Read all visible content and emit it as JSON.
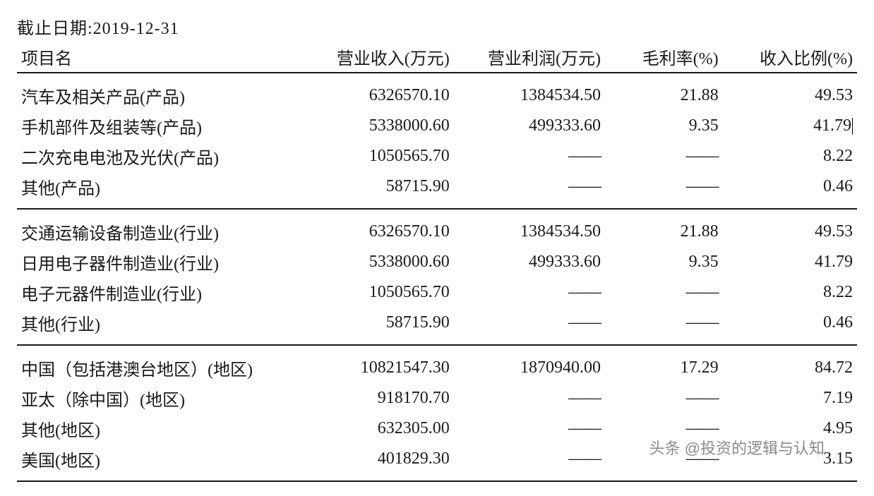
{
  "meta": {
    "cutoff_label": "截止日期",
    "cutoff_date": "2019-12-31"
  },
  "table": {
    "type": "table",
    "font_family": "SimSun",
    "font_size_pt": 18,
    "border_color": "#1a1a1a",
    "background_color": "#ffffff",
    "text_color": "#1a1a1a",
    "dash_placeholder": "——",
    "columns": [
      {
        "key": "name",
        "label": "项目名",
        "align": "left"
      },
      {
        "key": "rev",
        "label": "营业收入(万元)",
        "align": "right"
      },
      {
        "key": "profit",
        "label": "营业利润(万元)",
        "align": "right"
      },
      {
        "key": "margin",
        "label": "毛利率(%)",
        "align": "right"
      },
      {
        "key": "share",
        "label": "收入比例(%)",
        "align": "right"
      }
    ],
    "sections": [
      {
        "rows": [
          {
            "name": "汽车及相关产品(产品)",
            "rev": "6326570.10",
            "profit": "1384534.50",
            "margin": "21.88",
            "share": "49.53"
          },
          {
            "name": "手机部件及组装等(产品)",
            "rev": "5338000.60",
            "profit": "499333.60",
            "margin": "9.35",
            "share": "41.79",
            "cursor_after_share": true
          },
          {
            "name": "二次充电电池及光伏(产品)",
            "rev": "1050565.70",
            "profit": null,
            "margin": null,
            "share": "8.22"
          },
          {
            "name": "其他(产品)",
            "rev": "58715.90",
            "profit": null,
            "margin": null,
            "share": "0.46"
          }
        ]
      },
      {
        "rows": [
          {
            "name": "交通运输设备制造业(行业)",
            "rev": "6326570.10",
            "profit": "1384534.50",
            "margin": "21.88",
            "share": "49.53"
          },
          {
            "name": "日用电子器件制造业(行业)",
            "rev": "5338000.60",
            "profit": "499333.60",
            "margin": "9.35",
            "share": "41.79"
          },
          {
            "name": "电子元器件制造业(行业)",
            "rev": "1050565.70",
            "profit": null,
            "margin": null,
            "share": "8.22"
          },
          {
            "name": "其他(行业)",
            "rev": "58715.90",
            "profit": null,
            "margin": null,
            "share": "0.46"
          }
        ]
      },
      {
        "rows": [
          {
            "name": "中国（包括港澳台地区）(地区)",
            "rev": "10821547.30",
            "profit": "1870940.00",
            "margin": "17.29",
            "share": "84.72"
          },
          {
            "name": "亚太（除中国）(地区)",
            "rev": "918170.70",
            "profit": null,
            "margin": null,
            "share": "7.19"
          },
          {
            "name": "其他(地区)",
            "rev": "632305.00",
            "profit": null,
            "margin": null,
            "share": "4.95"
          },
          {
            "name": "美国(地区)",
            "rev": "401829.30",
            "profit": null,
            "margin": null,
            "share": "3.15"
          }
        ]
      }
    ]
  },
  "watermark": {
    "text": "头条 @投资的逻辑与认知",
    "color": "rgba(40,40,40,0.55)",
    "font_family": "Microsoft YaHei"
  }
}
